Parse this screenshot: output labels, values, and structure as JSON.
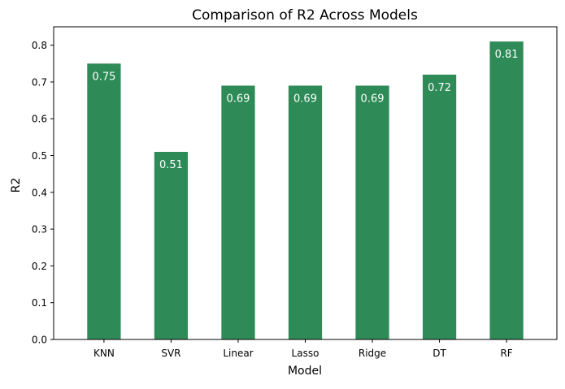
{
  "chart_data": {
    "type": "bar",
    "title": "Comparison of R2 Across Models",
    "xlabel": "Model",
    "ylabel": "R2",
    "categories": [
      "KNN",
      "SVR",
      "Linear",
      "Lasso",
      "Ridge",
      "DT",
      "RF"
    ],
    "values": [
      0.75,
      0.51,
      0.69,
      0.69,
      0.69,
      0.72,
      0.81
    ],
    "data_labels": [
      "0.75",
      "0.51",
      "0.69",
      "0.69",
      "0.69",
      "0.72",
      "0.81"
    ],
    "ylim": [
      0,
      0.85
    ],
    "yticks": [
      0.0,
      0.1,
      0.2,
      0.3,
      0.4,
      0.5,
      0.6,
      0.7,
      0.8
    ],
    "ytick_labels": [
      "0.0",
      "0.1",
      "0.2",
      "0.3",
      "0.4",
      "0.5",
      "0.6",
      "0.7",
      "0.8"
    ],
    "grid": false,
    "legend": "none",
    "bar_color": "#2e8b57",
    "label_color": "#ffffff"
  }
}
